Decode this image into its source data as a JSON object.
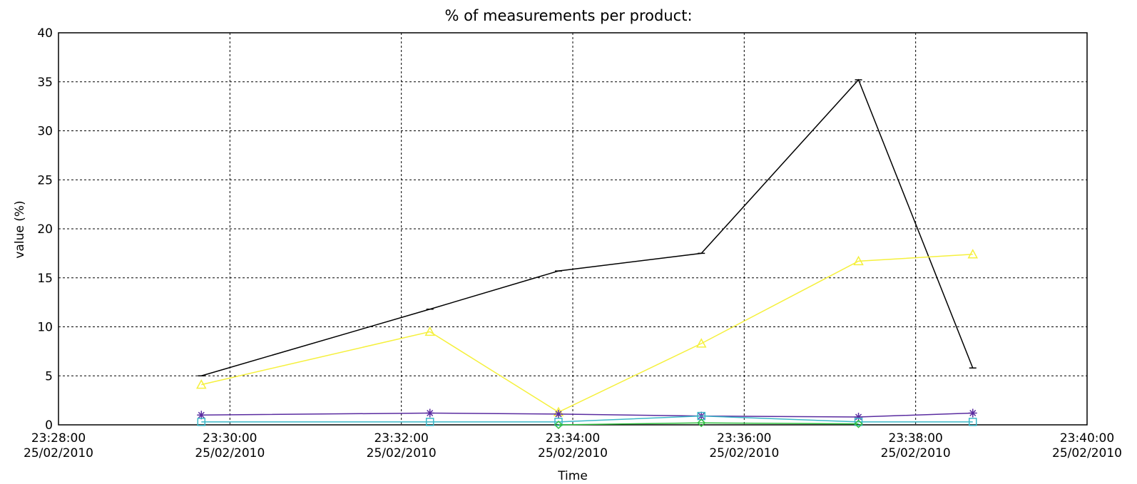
{
  "chart_data": {
    "type": "line",
    "title": "% of measurements per product:",
    "xlabel": "Time",
    "ylabel": "value (%)",
    "xlim": [
      "23:28:00 25/02/2010",
      "23:40:00 25/02/2010"
    ],
    "ylim": [
      0,
      40
    ],
    "grid": true,
    "x_ticks": [
      {
        "time": "23:28:00",
        "date": "25/02/2010"
      },
      {
        "time": "23:30:00",
        "date": "25/02/2010"
      },
      {
        "time": "23:32:00",
        "date": "25/02/2010"
      },
      {
        "time": "23:34:00",
        "date": "25/02/2010"
      },
      {
        "time": "23:36:00",
        "date": "25/02/2010"
      },
      {
        "time": "23:38:00",
        "date": "25/02/2010"
      },
      {
        "time": "23:40:00",
        "date": "25/02/2010"
      }
    ],
    "y_ticks": [
      0,
      5,
      10,
      15,
      20,
      25,
      30,
      35,
      40
    ],
    "series": [
      {
        "color": "#000000",
        "marker": "dash",
        "x": [
          "23:29:40",
          "23:32:20",
          "23:33:50",
          "23:35:30",
          "23:37:20",
          "23:38:40"
        ],
        "y": [
          5.0,
          11.8,
          15.7,
          17.5,
          35.2,
          5.8
        ]
      },
      {
        "color": "#f5f03c",
        "marker": "triangle",
        "x": [
          "23:29:40",
          "23:32:20",
          "23:33:50",
          "23:35:30",
          "23:37:20",
          "23:38:40"
        ],
        "y": [
          4.1,
          9.5,
          1.3,
          8.3,
          16.7,
          17.4
        ]
      },
      {
        "color": "#5a2ca0",
        "marker": "asterisk",
        "x": [
          "23:29:40",
          "23:32:20",
          "23:33:50",
          "23:35:30",
          "23:37:20",
          "23:38:40"
        ],
        "y": [
          1.0,
          1.2,
          1.1,
          0.9,
          0.8,
          1.2
        ]
      },
      {
        "color": "#3bb8c8",
        "marker": "square",
        "x": [
          "23:29:40",
          "23:32:20",
          "23:33:50",
          "23:35:30",
          "23:37:20",
          "23:38:40"
        ],
        "y": [
          0.3,
          0.3,
          0.3,
          0.9,
          0.3,
          0.3
        ]
      },
      {
        "color": "#30c040",
        "marker": "diamond",
        "x": [
          "23:33:50",
          "23:35:30",
          "23:37:20"
        ],
        "y": [
          0.0,
          0.2,
          0.1
        ]
      }
    ]
  }
}
